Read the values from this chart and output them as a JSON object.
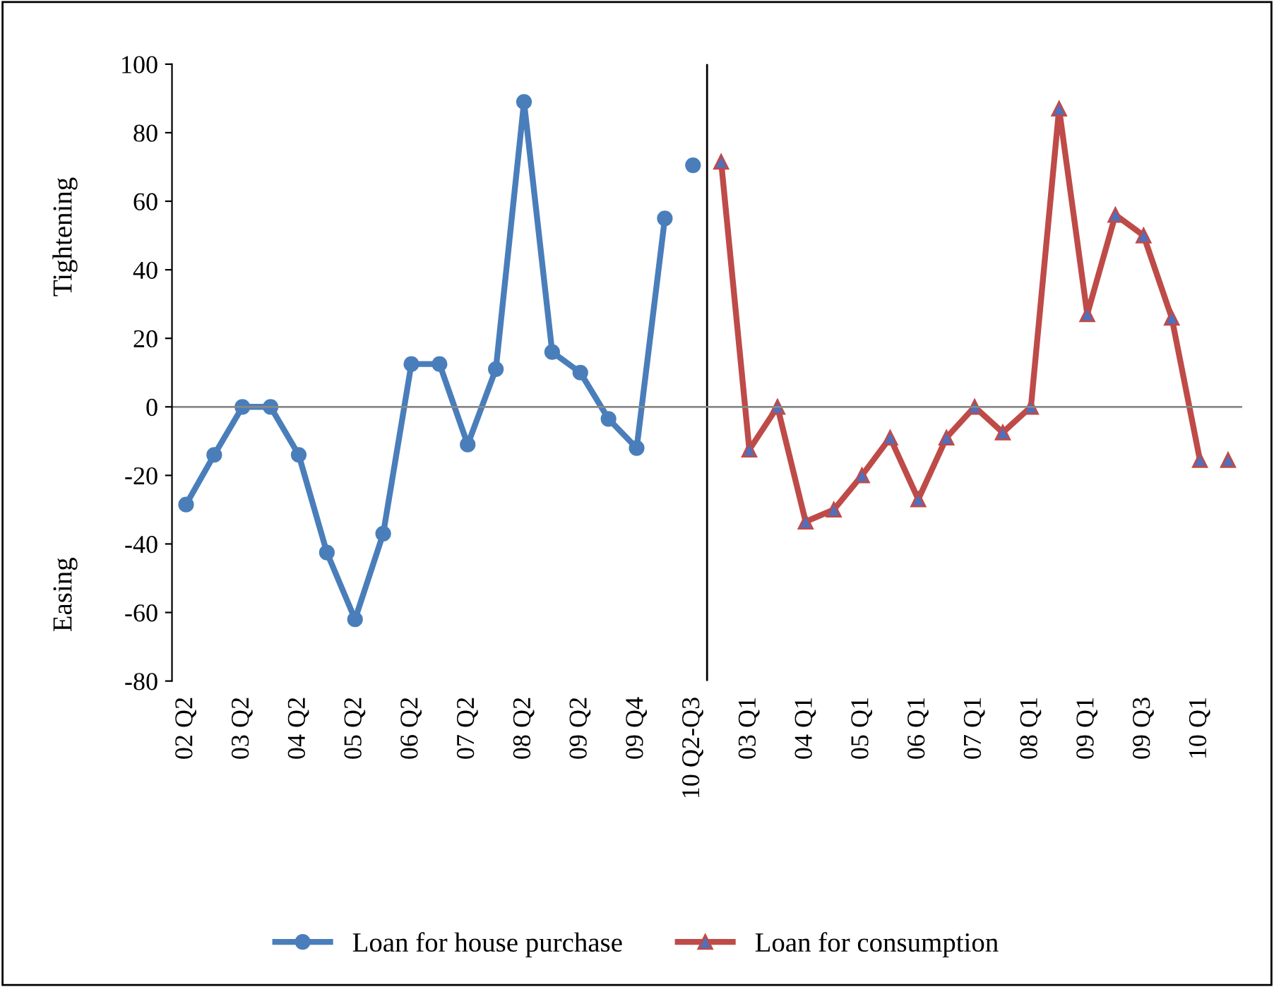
{
  "chart_data": {
    "type": "line",
    "categories": [
      "02 Q2",
      null,
      "03 Q2",
      null,
      "04 Q2",
      null,
      "05 Q2",
      null,
      "06 Q2",
      null,
      "07 Q2",
      null,
      "08 Q2",
      null,
      "09 Q2",
      null,
      "09 Q4",
      null,
      "10 Q2-Q3",
      null,
      "03 Q1",
      null,
      "04 Q1",
      null,
      "05 Q1",
      null,
      "06 Q1",
      null,
      "07 Q1",
      null,
      "08 Q1",
      null,
      "09 Q1",
      null,
      "09 Q3",
      null,
      "10 Q1",
      null
    ],
    "series": [
      {
        "name": "Loan for house purchase",
        "color": "#4a7ebb",
        "marker": "circle",
        "values": [
          -28.5,
          -14,
          0,
          0,
          -14,
          -42.5,
          -62,
          -37,
          12.5,
          12.5,
          -11,
          11,
          89,
          16,
          10,
          -3.5,
          -12,
          55,
          null,
          null,
          null,
          null,
          null,
          null,
          null,
          null,
          null,
          null,
          null,
          null,
          null,
          null,
          null,
          null,
          null,
          null,
          null,
          null
        ]
      },
      {
        "type": "scatter",
        "color": "#4a7ebb",
        "marker": "circle",
        "values": [
          null,
          null,
          null,
          null,
          null,
          null,
          null,
          null,
          null,
          null,
          null,
          null,
          null,
          null,
          null,
          null,
          null,
          null,
          70.5,
          null,
          null,
          null,
          null,
          null,
          null,
          null,
          null,
          null,
          null,
          null,
          null,
          null,
          null,
          null,
          null,
          null,
          null,
          null
        ]
      },
      {
        "name": "Loan for consumption",
        "color": "#be4b48",
        "marker": "triangle",
        "values": [
          null,
          null,
          null,
          null,
          null,
          null,
          null,
          null,
          null,
          null,
          null,
          null,
          null,
          null,
          null,
          null,
          null,
          null,
          null,
          71.5,
          -12.5,
          0,
          -33.5,
          -30,
          -20,
          -9,
          -27,
          -9,
          0,
          -7.5,
          0,
          87,
          27,
          56,
          50,
          26,
          -15.5,
          null
        ]
      },
      {
        "type": "scatter",
        "color": "#be4b48",
        "marker": "triangle",
        "values": [
          null,
          null,
          null,
          null,
          null,
          null,
          null,
          null,
          null,
          null,
          null,
          null,
          null,
          null,
          null,
          null,
          null,
          null,
          null,
          null,
          null,
          null,
          null,
          null,
          null,
          null,
          null,
          null,
          null,
          null,
          null,
          null,
          null,
          null,
          null,
          null,
          null,
          -15.5
        ]
      }
    ],
    "ylim": [
      -80,
      100
    ],
    "yticks": [
      -80,
      -60,
      -40,
      -20,
      0,
      20,
      40,
      60,
      80,
      100
    ],
    "annotations": [
      "Tightening",
      "Easing"
    ],
    "legend": "bottom",
    "grid": false
  }
}
